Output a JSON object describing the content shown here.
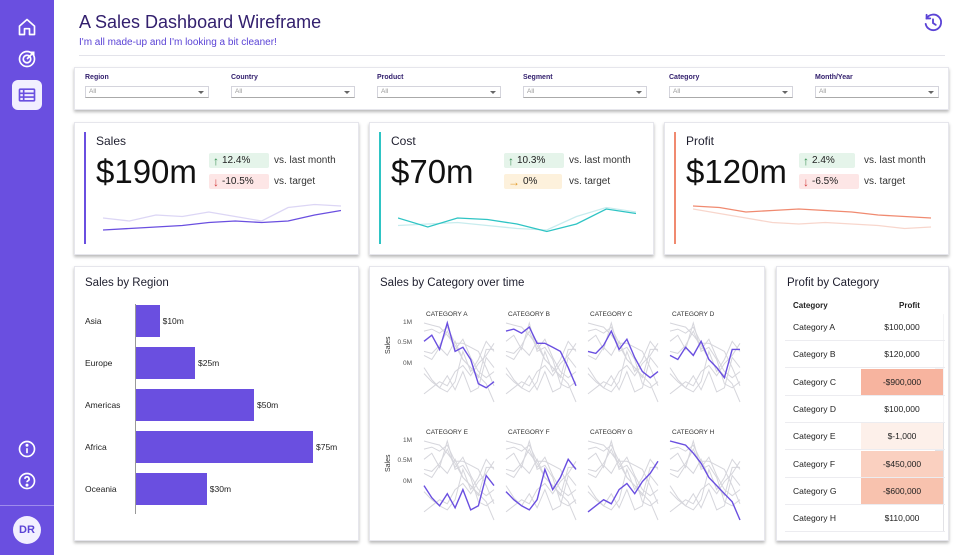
{
  "header": {
    "title": "A Sales Dashboard Wireframe",
    "subtitle": "I'm all made-up and I'm looking a bit cleaner!"
  },
  "sidebar": {
    "items": [
      {
        "icon": "home-icon"
      },
      {
        "icon": "target-icon"
      },
      {
        "icon": "table-icon",
        "active": true
      }
    ],
    "bottom_items": [
      {
        "icon": "info-icon"
      },
      {
        "icon": "help-icon"
      }
    ],
    "avatar": "DR"
  },
  "filters": [
    {
      "label": "Region",
      "value": "All"
    },
    {
      "label": "Country",
      "value": "All"
    },
    {
      "label": "Product",
      "value": "All"
    },
    {
      "label": "Segment",
      "value": "All"
    },
    {
      "label": "Category",
      "value": "All"
    },
    {
      "label": "Month/Year",
      "value": "All"
    }
  ],
  "kpis": [
    {
      "label": "Sales",
      "value": "$190m",
      "accent": "#6a4fe0",
      "delta1": {
        "value": "12.4%",
        "dir": "up",
        "vs": "vs. last month"
      },
      "delta2": {
        "value": "-10.5%",
        "dir": "down",
        "vs": "vs. target"
      },
      "spark_main": [
        18,
        17,
        16,
        15,
        13,
        12,
        13,
        12,
        8,
        5
      ],
      "spark_ghost": [
        10,
        12,
        8,
        9,
        6,
        9,
        12,
        3,
        1,
        2
      ]
    },
    {
      "label": "Cost",
      "value": "$70m",
      "accent": "#2ec4c4",
      "delta1": {
        "value": "10.3%",
        "dir": "up",
        "vs": "vs. last month"
      },
      "delta2": {
        "value": "0%",
        "dir": "flat",
        "vs": "vs. target"
      },
      "spark_main": [
        10,
        16,
        10,
        11,
        14,
        19,
        14,
        4,
        7
      ],
      "spark_ghost": [
        15,
        14,
        13,
        15,
        17,
        18,
        9,
        3,
        6
      ]
    },
    {
      "label": "Profit",
      "value": "$120m",
      "accent": "#f08a70",
      "delta1": {
        "value": "2.4%",
        "dir": "up",
        "vs": "vs. last month"
      },
      "delta2": {
        "value": "-6.5%",
        "dir": "down",
        "vs": "vs. target"
      },
      "spark_main": [
        2,
        3,
        6,
        5,
        4,
        5,
        6,
        8,
        9,
        10
      ],
      "spark_ghost": [
        4,
        7,
        10,
        13,
        14,
        13,
        14,
        15,
        17,
        16
      ]
    }
  ],
  "colors": {
    "up_bg": "#e5f4ea",
    "up_arrow": "#2f8a4a",
    "down_bg": "#fde6e6",
    "down_arrow": "#d23b3b",
    "flat_bg": "#fdf1dc",
    "flat_arrow": "#e39a28"
  },
  "sales_by_region": {
    "title": "Sales by Region",
    "chart_data": {
      "type": "bar",
      "orientation": "horizontal",
      "categories": [
        "Asia",
        "Europe",
        "Americas",
        "Africa",
        "Oceania"
      ],
      "values": [
        10,
        25,
        50,
        75,
        30
      ],
      "labels": [
        "$10m",
        "$25m",
        "$50m",
        "$75m",
        "$30m"
      ]
    }
  },
  "sales_by_category": {
    "title": "Sales by Category over time",
    "ylabel": "Sales",
    "yticks": [
      "1M",
      "0.5M",
      "0M"
    ],
    "chart_data": {
      "type": "line",
      "small_multiples": true,
      "series": [
        {
          "name": "CATEGORY A",
          "values": [
            0.55,
            0.7,
            0.35,
            1.0,
            0.3,
            0.4,
            0.1,
            -0.5,
            -0.6,
            -0.45
          ]
        },
        {
          "name": "CATEGORY B",
          "values": [
            0.8,
            0.85,
            0.75,
            0.9,
            0.5,
            0.5,
            0.4,
            0.3,
            -0.1,
            -0.55
          ]
        },
        {
          "name": "CATEGORY C",
          "values": [
            0.3,
            0.25,
            0.45,
            0.8,
            0.35,
            0.6,
            0.15,
            -0.2,
            -0.35,
            -0.2
          ]
        },
        {
          "name": "CATEGORY D",
          "values": [
            0.2,
            0.1,
            0.4,
            0.2,
            0.55,
            0.1,
            -0.1,
            -0.35,
            0.35,
            0.35
          ]
        },
        {
          "name": "CATEGORY E",
          "values": [
            -0.1,
            -0.4,
            -0.6,
            -0.3,
            -0.65,
            -0.2,
            -0.7,
            -0.6,
            0.15,
            -0.1
          ]
        },
        {
          "name": "CATEGORY F",
          "values": [
            -0.25,
            -0.45,
            -0.6,
            -0.7,
            -0.45,
            0.3,
            -0.2,
            0.1,
            0.55,
            0.3
          ]
        },
        {
          "name": "CATEGORY G",
          "values": [
            -0.75,
            -0.6,
            -0.45,
            -0.55,
            -0.2,
            -0.05,
            -0.3,
            0.0,
            0.2,
            0.5
          ]
        },
        {
          "name": "CATEGORY H",
          "values": [
            1.0,
            0.95,
            0.9,
            0.7,
            0.45,
            0.1,
            -0.1,
            -0.3,
            -0.5,
            -0.95
          ]
        }
      ]
    }
  },
  "profit_by_category": {
    "title": "Profit by Category",
    "columns": [
      "Category",
      "Profit"
    ],
    "rows": [
      {
        "category": "Category A",
        "profit": "$100,000",
        "bg": "#ffffff"
      },
      {
        "category": "Category B",
        "profit": "$120,000",
        "bg": "#ffffff"
      },
      {
        "category": "Category C",
        "profit": "-$900,000",
        "bg": "#f7b49f"
      },
      {
        "category": "Category D",
        "profit": "$100,000",
        "bg": "#ffffff"
      },
      {
        "category": "Category E",
        "profit": "$-1,000",
        "bg": "#fdf0ea"
      },
      {
        "category": "Category F",
        "profit": "-$450,000",
        "bg": "#fad0c0"
      },
      {
        "category": "Category G",
        "profit": "-$600,000",
        "bg": "#f8c2ae"
      },
      {
        "category": "Category H",
        "profit": "$110,000",
        "bg": "#ffffff"
      }
    ]
  }
}
